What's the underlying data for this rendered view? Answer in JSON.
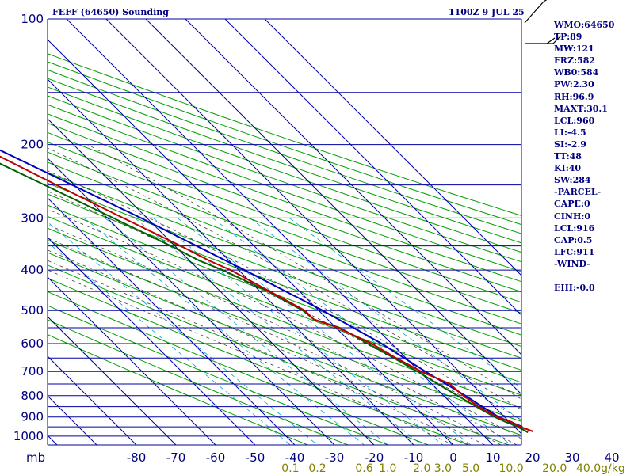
{
  "header": {
    "title": "FEFF (64650) Sounding",
    "timestamp": "1100Z  9 JUL 25"
  },
  "indices": [
    "WMO:64650",
    "TP:89",
    "MW:121",
    "FRZ:582",
    "WB0:584",
    "PW:2.30",
    "RH:96.9",
    "MAXT:30.1",
    "LCL:960",
    "LI:-4.5",
    "SI:-2.9",
    "TT:48",
    "KI:40",
    "SW:284",
    "-PARCEL-",
    "CAPE:0",
    "CINH:0",
    "LCL:916",
    "CAP:0.5",
    "LFC:911",
    "-WIND-",
    "",
    "EHI:-0.0"
  ],
  "colors": {
    "isobar_isotherm_grid": "#0000a0",
    "dry_adiabat": "#00a000",
    "moist_adiabat": "#404040",
    "mixing_ratio": "#00a0d0",
    "temperature": "#c00000",
    "dewpoint": "#006000",
    "parcel": "#0000c0",
    "axis_text": "#000080",
    "mixing_ratio_text": "#808000"
  },
  "chart_data": {
    "type": "skew-t log-p",
    "x_unit": "°C",
    "y_unit": "mb",
    "pressure_ticks": [
      100,
      200,
      300,
      400,
      500,
      600,
      700,
      800,
      900,
      1000
    ],
    "temperature_ticks": [
      -80,
      -70,
      -60,
      -50,
      -40,
      -30,
      -20,
      -10,
      0,
      10,
      20,
      30,
      40
    ],
    "mixing_ratio_labels": [
      "0.1",
      "0.2",
      "0.6",
      "1.0",
      "2.0",
      "3.0",
      "5.0",
      "10.0",
      "20.0",
      "40.0"
    ],
    "mixing_ratio_unit": "g/kg",
    "mb_label": "mb",
    "series": [
      {
        "key": "temperature",
        "points": [
          {
            "p": 975,
            "t": 23.5
          },
          {
            "p": 950,
            "t": 21.5
          },
          {
            "p": 925,
            "t": 20.5
          },
          {
            "p": 900,
            "t": 18.0
          },
          {
            "p": 850,
            "t": 16.0
          },
          {
            "p": 800,
            "t": 15.0
          },
          {
            "p": 750,
            "t": 14.5
          },
          {
            "p": 700,
            "t": 10.5
          },
          {
            "p": 650,
            "t": 7.5
          },
          {
            "p": 600,
            "t": 5.0
          },
          {
            "p": 550,
            "t": 0.5
          },
          {
            "p": 525,
            "t": -3.5
          },
          {
            "p": 500,
            "t": -3.5
          },
          {
            "p": 450,
            "t": -7.5
          },
          {
            "p": 400,
            "t": -12.0
          },
          {
            "p": 380,
            "t": -15.0
          },
          {
            "p": 350,
            "t": -18.5
          },
          {
            "p": 300,
            "t": -26.0
          },
          {
            "p": 250,
            "t": -34.5
          },
          {
            "p": 200,
            "t": -44.5
          },
          {
            "p": 150,
            "t": -58.0
          },
          {
            "p": 130,
            "t": -63.5
          },
          {
            "p": 120,
            "t": -63.5
          },
          {
            "p": 110,
            "t": -63.5
          },
          {
            "p": 100,
            "t": -62.5
          }
        ]
      },
      {
        "key": "dewpoint",
        "points": [
          {
            "p": 980,
            "t": 22.0
          },
          {
            "p": 950,
            "t": 21.0
          },
          {
            "p": 925,
            "t": 19.0
          },
          {
            "p": 900,
            "t": 17.5
          },
          {
            "p": 850,
            "t": 15.5
          },
          {
            "p": 800,
            "t": 13.5
          },
          {
            "p": 750,
            "t": 11.5
          },
          {
            "p": 700,
            "t": 9.5
          },
          {
            "p": 650,
            "t": 7.0
          },
          {
            "p": 600,
            "t": 4.0
          },
          {
            "p": 550,
            "t": 1.0
          },
          {
            "p": 525,
            "t": -3.5
          },
          {
            "p": 500,
            "t": -4.0
          },
          {
            "p": 450,
            "t": -8.0
          },
          {
            "p": 400,
            "t": -14.0
          },
          {
            "p": 380,
            "t": -17.5
          },
          {
            "p": 350,
            "t": -21.0
          },
          {
            "p": 300,
            "t": -28.5
          },
          {
            "p": 250,
            "t": -37.5
          },
          {
            "p": 200,
            "t": -48.5
          },
          {
            "p": 150,
            "t": -62.5
          },
          {
            "p": 140,
            "t": -66.5
          }
        ]
      },
      {
        "key": "parcel",
        "points": [
          {
            "p": 950,
            "t": 22.0
          },
          {
            "p": 900,
            "t": 18.5
          },
          {
            "p": 850,
            "t": 17.0
          },
          {
            "p": 800,
            "t": 15.5
          },
          {
            "p": 700,
            "t": 11.5
          },
          {
            "p": 600,
            "t": 7.5
          },
          {
            "p": 500,
            "t": 1.0
          },
          {
            "p": 450,
            "t": -3.5
          },
          {
            "p": 400,
            "t": -8.5
          },
          {
            "p": 350,
            "t": -14.5
          },
          {
            "p": 300,
            "t": -21.5
          },
          {
            "p": 250,
            "t": -30.5
          },
          {
            "p": 200,
            "t": -41.5
          },
          {
            "p": 150,
            "t": -56.0
          },
          {
            "p": 120,
            "t": -66.0
          }
        ]
      }
    ]
  }
}
